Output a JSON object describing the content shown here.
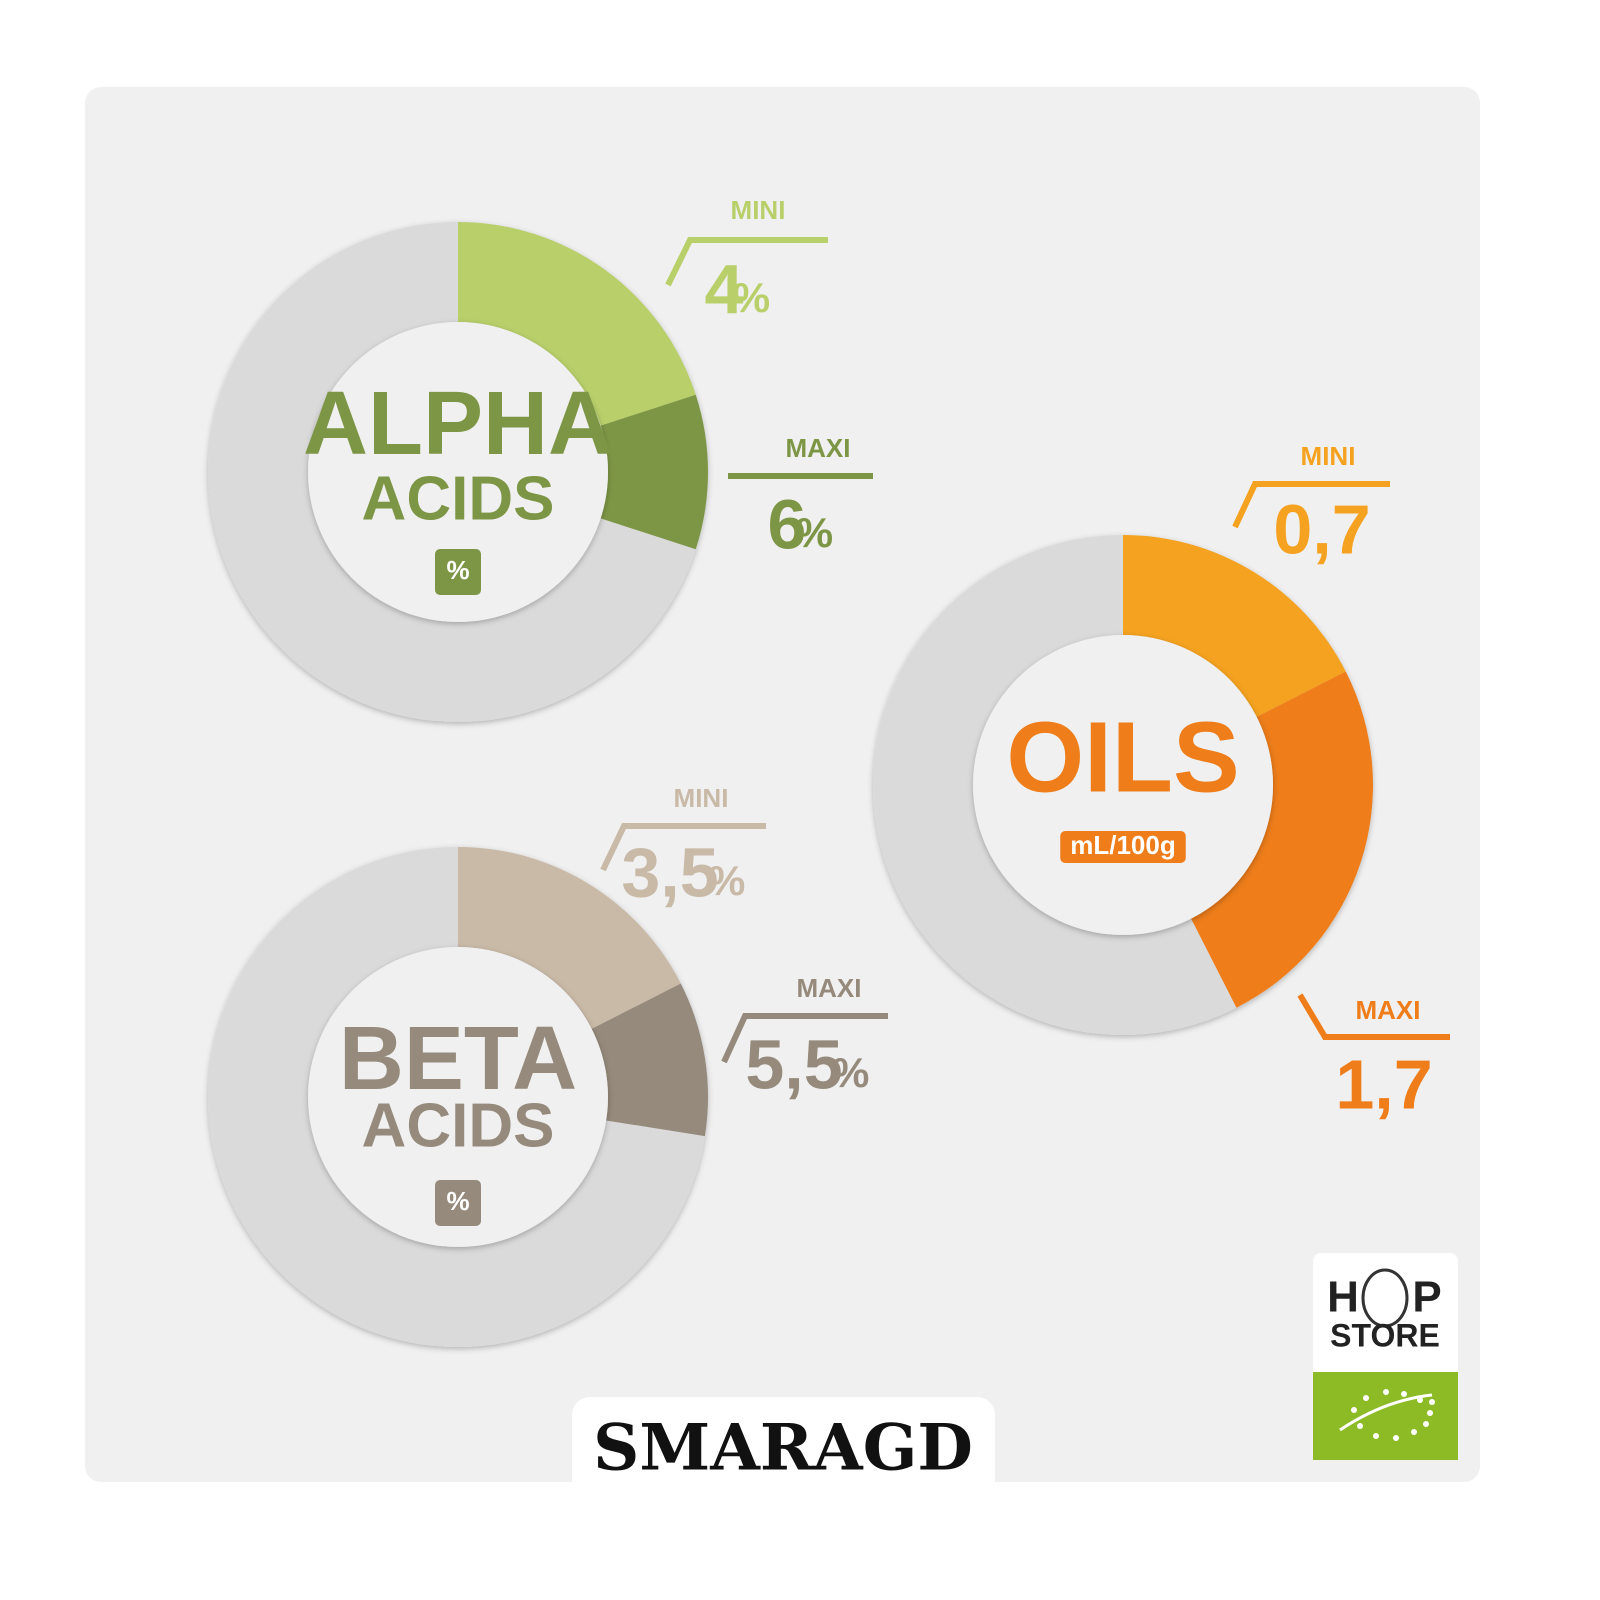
{
  "chart_data": [
    {
      "type": "donut",
      "title": "ALPHA",
      "subtitle": "ACIDS",
      "unit": "%",
      "title_color": "#7d9645",
      "categories": [
        "MINI",
        "MAXI"
      ],
      "values": [
        4,
        6
      ],
      "value_unit": "%",
      "colors": [
        "#b8cf6a",
        "#7d9645"
      ],
      "range": [
        0,
        20
      ]
    },
    {
      "type": "donut",
      "title": "OILS",
      "unit": "mL/100g",
      "title_color": "#ee7d1a",
      "categories": [
        "MINI",
        "MAXI"
      ],
      "values": [
        0.7,
        1.7
      ],
      "value_labels": [
        "0,7",
        "1,7"
      ],
      "colors": [
        "#f4a21f",
        "#ee7d1a"
      ],
      "range": [
        0,
        4
      ]
    },
    {
      "type": "donut",
      "title": "BETA",
      "subtitle": "ACIDS",
      "unit": "%",
      "title_color": "#958a7b",
      "categories": [
        "MINI",
        "MAXI"
      ],
      "values": [
        3.5,
        5.5
      ],
      "value_labels": [
        "3,5",
        "5,5"
      ],
      "value_unit": "%",
      "colors": [
        "#c9b9a7",
        "#958a7b"
      ],
      "range": [
        0,
        20
      ]
    }
  ],
  "product_name": "SMARAGD",
  "logo": {
    "top": [
      "H",
      "P"
    ],
    "bottom": "STORE"
  }
}
